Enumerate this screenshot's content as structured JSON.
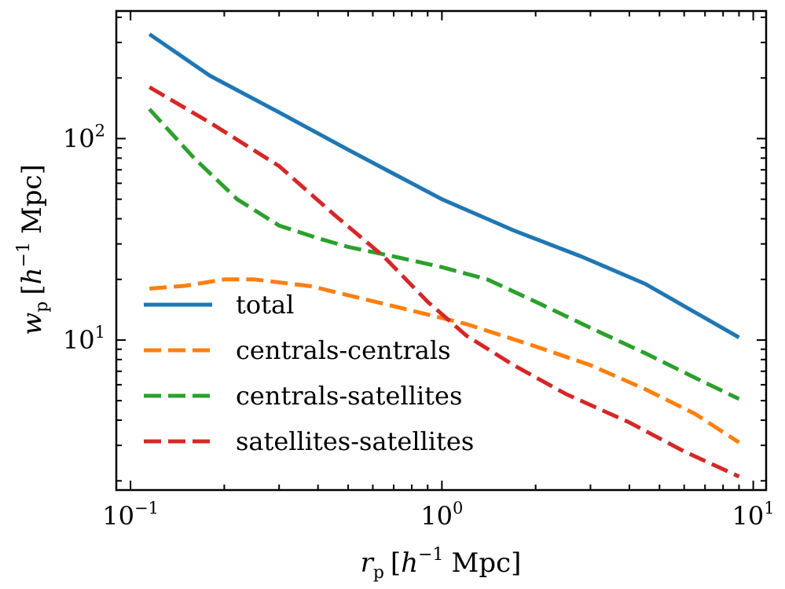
{
  "chart_data": {
    "type": "line",
    "xscale": "log",
    "yscale": "log",
    "xlim": [
      0.09,
      11
    ],
    "ylim": [
      1.8,
      430
    ],
    "xlabel": {
      "main": "r",
      "sub": "p",
      "bracket_open": "[",
      "h": "h",
      "exp": "−1",
      "unit": "Mpc",
      "bracket_close": "]"
    },
    "ylabel": {
      "main": "w",
      "sub": "p",
      "bracket_open": "[",
      "h": "h",
      "exp": "−1",
      "unit": "Mpc",
      "bracket_close": "]"
    },
    "xticks": [
      {
        "value": 0.1,
        "base": "10",
        "exp": "−1"
      },
      {
        "value": 1,
        "base": "10",
        "exp": "0"
      },
      {
        "value": 10,
        "base": "10",
        "exp": "1"
      }
    ],
    "yticks": [
      {
        "value": 10,
        "base": "10",
        "exp": "1"
      },
      {
        "value": 100,
        "base": "10",
        "exp": "2"
      }
    ],
    "legend_position": "lower-left",
    "grid": false,
    "series": [
      {
        "name": "total",
        "color": "#1f77b4",
        "dashed": false,
        "x": [
          0.115,
          0.18,
          0.3,
          0.5,
          1.0,
          1.7,
          2.8,
          4.5,
          9.0
        ],
        "y": [
          330,
          205,
          135,
          88,
          50,
          35,
          26,
          19,
          10.3
        ]
      },
      {
        "name": "centrals-centrals",
        "color": "#ff7f0e",
        "dashed": true,
        "x": [
          0.115,
          0.15,
          0.2,
          0.25,
          0.38,
          0.5,
          0.8,
          1.2,
          2.0,
          3.0,
          4.5,
          6.5,
          9.0
        ],
        "y": [
          18,
          18.6,
          20,
          20,
          18.5,
          16.7,
          14,
          12,
          9.3,
          7.5,
          5.7,
          4.3,
          3.1
        ]
      },
      {
        "name": "centrals-satellites",
        "color": "#2ca02c",
        "dashed": true,
        "x": [
          0.115,
          0.16,
          0.22,
          0.3,
          0.4,
          0.5,
          0.7,
          1.0,
          1.4,
          2.0,
          3.0,
          4.5,
          6.5,
          9.0
        ],
        "y": [
          140,
          80,
          50,
          37,
          32,
          29,
          26,
          23,
          20,
          15.5,
          11.5,
          8.6,
          6.5,
          5.1
        ]
      },
      {
        "name": "satellites-satellites",
        "color": "#d62728",
        "dashed": true,
        "x": [
          0.115,
          0.18,
          0.3,
          0.45,
          0.65,
          0.9,
          1.2,
          1.7,
          2.5,
          4.0,
          6.0,
          9.0
        ],
        "y": [
          180,
          120,
          73,
          42,
          26,
          15.5,
          10.5,
          7.5,
          5.4,
          3.9,
          2.8,
          2.1
        ]
      }
    ]
  }
}
